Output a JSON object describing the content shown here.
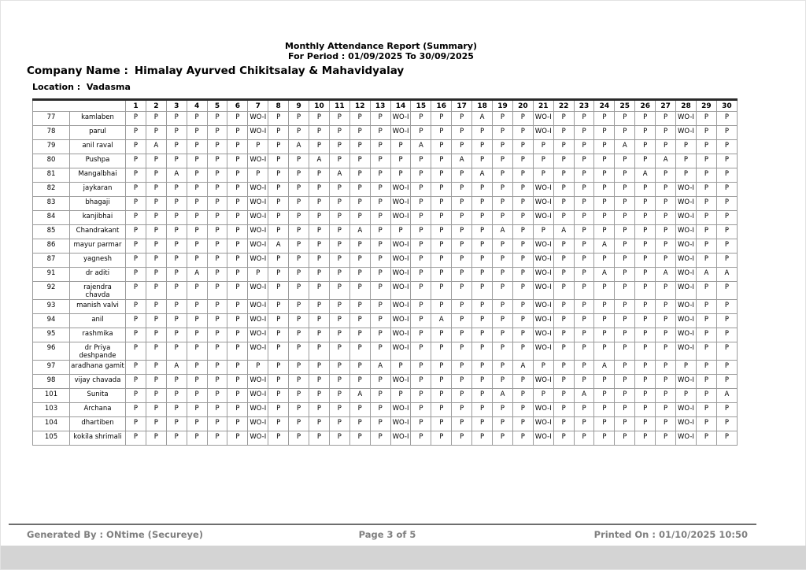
{
  "header": {
    "report_title": "Monthly Attendance Report (Summary)",
    "report_period": "For Period  : 01/09/2025 To 30/09/2025",
    "company_label": "Company Name :",
    "company_name": "Himalay Ayurved Chikitsalay & Mahavidyalay",
    "location_label": "Location  :",
    "location_name": "Vadasma"
  },
  "table": {
    "day_headers": [
      "1",
      "2",
      "3",
      "4",
      "5",
      "6",
      "7",
      "8",
      "9",
      "10",
      "11",
      "12",
      "13",
      "14",
      "15",
      "16",
      "17",
      "18",
      "19",
      "20",
      "21",
      "22",
      "23",
      "24",
      "25",
      "26",
      "27",
      "28",
      "29",
      "30"
    ],
    "rows": [
      {
        "id": "77",
        "name": "kamlaben",
        "days": [
          "P",
          "P",
          "P",
          "P",
          "P",
          "P",
          "WO-I",
          "P",
          "P",
          "P",
          "P",
          "P",
          "P",
          "WO-I",
          "P",
          "P",
          "P",
          "A",
          "P",
          "P",
          "WO-I",
          "P",
          "P",
          "P",
          "P",
          "P",
          "P",
          "WO-I",
          "P",
          "P"
        ]
      },
      {
        "id": "78",
        "name": "parul",
        "days": [
          "P",
          "P",
          "P",
          "P",
          "P",
          "P",
          "WO-I",
          "P",
          "P",
          "P",
          "P",
          "P",
          "P",
          "WO-I",
          "P",
          "P",
          "P",
          "P",
          "P",
          "P",
          "WO-I",
          "P",
          "P",
          "P",
          "P",
          "P",
          "P",
          "WO-I",
          "P",
          "P"
        ]
      },
      {
        "id": "79",
        "name": "anil raval",
        "days": [
          "P",
          "A",
          "P",
          "P",
          "P",
          "P",
          "P",
          "P",
          "A",
          "P",
          "P",
          "P",
          "P",
          "P",
          "A",
          "P",
          "P",
          "P",
          "P",
          "P",
          "P",
          "P",
          "P",
          "P",
          "A",
          "P",
          "P",
          "P",
          "P",
          "P"
        ]
      },
      {
        "id": "80",
        "name": "Pushpa",
        "days": [
          "P",
          "P",
          "P",
          "P",
          "P",
          "P",
          "WO-I",
          "P",
          "P",
          "A",
          "P",
          "P",
          "P",
          "P",
          "P",
          "P",
          "A",
          "P",
          "P",
          "P",
          "P",
          "P",
          "P",
          "P",
          "P",
          "P",
          "A",
          "P",
          "P",
          "P"
        ]
      },
      {
        "id": "81",
        "name": "Mangalbhai",
        "days": [
          "P",
          "P",
          "A",
          "P",
          "P",
          "P",
          "P",
          "P",
          "P",
          "P",
          "A",
          "P",
          "P",
          "P",
          "P",
          "P",
          "P",
          "A",
          "P",
          "P",
          "P",
          "P",
          "P",
          "P",
          "P",
          "A",
          "P",
          "P",
          "P",
          "P"
        ]
      },
      {
        "id": "82",
        "name": "jaykaran",
        "days": [
          "P",
          "P",
          "P",
          "P",
          "P",
          "P",
          "WO-I",
          "P",
          "P",
          "P",
          "P",
          "P",
          "P",
          "WO-I",
          "P",
          "P",
          "P",
          "P",
          "P",
          "P",
          "WO-I",
          "P",
          "P",
          "P",
          "P",
          "P",
          "P",
          "WO-I",
          "P",
          "P"
        ]
      },
      {
        "id": "83",
        "name": "bhagaji",
        "days": [
          "P",
          "P",
          "P",
          "P",
          "P",
          "P",
          "WO-I",
          "P",
          "P",
          "P",
          "P",
          "P",
          "P",
          "WO-I",
          "P",
          "P",
          "P",
          "P",
          "P",
          "P",
          "WO-I",
          "P",
          "P",
          "P",
          "P",
          "P",
          "P",
          "WO-I",
          "P",
          "P"
        ]
      },
      {
        "id": "84",
        "name": "kanjibhai",
        "days": [
          "P",
          "P",
          "P",
          "P",
          "P",
          "P",
          "WO-I",
          "P",
          "P",
          "P",
          "P",
          "P",
          "P",
          "WO-I",
          "P",
          "P",
          "P",
          "P",
          "P",
          "P",
          "WO-I",
          "P",
          "P",
          "P",
          "P",
          "P",
          "P",
          "WO-I",
          "P",
          "P"
        ]
      },
      {
        "id": "85",
        "name": "Chandrakant",
        "days": [
          "P",
          "P",
          "P",
          "P",
          "P",
          "P",
          "WO-I",
          "P",
          "P",
          "P",
          "P",
          "A",
          "P",
          "P",
          "P",
          "P",
          "P",
          "P",
          "A",
          "P",
          "P",
          "A",
          "P",
          "P",
          "P",
          "P",
          "P",
          "WO-I",
          "P",
          "P"
        ]
      },
      {
        "id": "86",
        "name": "mayur parmar",
        "days": [
          "P",
          "P",
          "P",
          "P",
          "P",
          "P",
          "WO-I",
          "A",
          "P",
          "P",
          "P",
          "P",
          "P",
          "WO-I",
          "P",
          "P",
          "P",
          "P",
          "P",
          "P",
          "WO-I",
          "P",
          "P",
          "A",
          "P",
          "P",
          "P",
          "WO-I",
          "P",
          "P"
        ]
      },
      {
        "id": "87",
        "name": "yagnesh",
        "days": [
          "P",
          "P",
          "P",
          "P",
          "P",
          "P",
          "WO-I",
          "P",
          "P",
          "P",
          "P",
          "P",
          "P",
          "WO-I",
          "P",
          "P",
          "P",
          "P",
          "P",
          "P",
          "WO-I",
          "P",
          "P",
          "P",
          "P",
          "P",
          "P",
          "WO-I",
          "P",
          "P"
        ]
      },
      {
        "id": "91",
        "name": "dr aditi",
        "days": [
          "P",
          "P",
          "P",
          "A",
          "P",
          "P",
          "P",
          "P",
          "P",
          "P",
          "P",
          "P",
          "P",
          "WO-I",
          "P",
          "P",
          "P",
          "P",
          "P",
          "P",
          "WO-I",
          "P",
          "P",
          "A",
          "P",
          "P",
          "A",
          "WO-I",
          "A",
          "A"
        ]
      },
      {
        "id": "92",
        "name": "rajendra chavda",
        "days": [
          "P",
          "P",
          "P",
          "P",
          "P",
          "P",
          "WO-I",
          "P",
          "P",
          "P",
          "P",
          "P",
          "P",
          "WO-I",
          "P",
          "P",
          "P",
          "P",
          "P",
          "P",
          "WO-I",
          "P",
          "P",
          "P",
          "P",
          "P",
          "P",
          "WO-I",
          "P",
          "P"
        ]
      },
      {
        "id": "93",
        "name": "manish valvi",
        "days": [
          "P",
          "P",
          "P",
          "P",
          "P",
          "P",
          "WO-I",
          "P",
          "P",
          "P",
          "P",
          "P",
          "P",
          "WO-I",
          "P",
          "P",
          "P",
          "P",
          "P",
          "P",
          "WO-I",
          "P",
          "P",
          "P",
          "P",
          "P",
          "P",
          "WO-I",
          "P",
          "P"
        ]
      },
      {
        "id": "94",
        "name": "anil",
        "days": [
          "P",
          "P",
          "P",
          "P",
          "P",
          "P",
          "WO-I",
          "P",
          "P",
          "P",
          "P",
          "P",
          "P",
          "WO-I",
          "P",
          "A",
          "P",
          "P",
          "P",
          "P",
          "WO-I",
          "P",
          "P",
          "P",
          "P",
          "P",
          "P",
          "WO-I",
          "P",
          "P"
        ]
      },
      {
        "id": "95",
        "name": "rashmika",
        "days": [
          "P",
          "P",
          "P",
          "P",
          "P",
          "P",
          "WO-I",
          "P",
          "P",
          "P",
          "P",
          "P",
          "P",
          "WO-I",
          "P",
          "P",
          "P",
          "P",
          "P",
          "P",
          "WO-I",
          "P",
          "P",
          "P",
          "P",
          "P",
          "P",
          "WO-I",
          "P",
          "P"
        ]
      },
      {
        "id": "96",
        "name": "dr Priya deshpande",
        "days": [
          "P",
          "P",
          "P",
          "P",
          "P",
          "P",
          "WO-I",
          "P",
          "P",
          "P",
          "P",
          "P",
          "P",
          "WO-I",
          "P",
          "P",
          "P",
          "P",
          "P",
          "P",
          "WO-I",
          "P",
          "P",
          "P",
          "P",
          "P",
          "P",
          "WO-I",
          "P",
          "P"
        ]
      },
      {
        "id": "97",
        "name": "aradhana gamit",
        "days": [
          "P",
          "P",
          "A",
          "P",
          "P",
          "P",
          "P",
          "P",
          "P",
          "P",
          "P",
          "P",
          "A",
          "P",
          "P",
          "P",
          "P",
          "P",
          "P",
          "A",
          "P",
          "P",
          "P",
          "A",
          "P",
          "P",
          "P",
          "P",
          "P",
          "P"
        ]
      },
      {
        "id": "98",
        "name": "vijay chavada",
        "days": [
          "P",
          "P",
          "P",
          "P",
          "P",
          "P",
          "WO-I",
          "P",
          "P",
          "P",
          "P",
          "P",
          "P",
          "WO-I",
          "P",
          "P",
          "P",
          "P",
          "P",
          "P",
          "WO-I",
          "P",
          "P",
          "P",
          "P",
          "P",
          "P",
          "WO-I",
          "P",
          "P"
        ]
      },
      {
        "id": "101",
        "name": "Sunita",
        "days": [
          "P",
          "P",
          "P",
          "P",
          "P",
          "P",
          "WO-I",
          "P",
          "P",
          "P",
          "P",
          "A",
          "P",
          "P",
          "P",
          "P",
          "P",
          "P",
          "A",
          "P",
          "P",
          "P",
          "A",
          "P",
          "P",
          "P",
          "P",
          "P",
          "P",
          "A"
        ]
      },
      {
        "id": "103",
        "name": "Archana",
        "days": [
          "P",
          "P",
          "P",
          "P",
          "P",
          "P",
          "WO-I",
          "P",
          "P",
          "P",
          "P",
          "P",
          "P",
          "WO-I",
          "P",
          "P",
          "P",
          "P",
          "P",
          "P",
          "WO-I",
          "P",
          "P",
          "P",
          "P",
          "P",
          "P",
          "WO-I",
          "P",
          "P"
        ]
      },
      {
        "id": "104",
        "name": "dhartiben",
        "days": [
          "P",
          "P",
          "P",
          "P",
          "P",
          "P",
          "WO-I",
          "P",
          "P",
          "P",
          "P",
          "P",
          "P",
          "WO-I",
          "P",
          "P",
          "P",
          "P",
          "P",
          "P",
          "WO-I",
          "P",
          "P",
          "P",
          "P",
          "P",
          "P",
          "WO-I",
          "P",
          "P"
        ]
      },
      {
        "id": "105",
        "name": "kokila shrimali",
        "days": [
          "P",
          "P",
          "P",
          "P",
          "P",
          "P",
          "WO-I",
          "P",
          "P",
          "P",
          "P",
          "P",
          "P",
          "WO-I",
          "P",
          "P",
          "P",
          "P",
          "P",
          "P",
          "WO-I",
          "P",
          "P",
          "P",
          "P",
          "P",
          "P",
          "WO-I",
          "P",
          "P"
        ]
      }
    ]
  },
  "footer": {
    "generated_by": "Generated By : ONtime (Secureye)",
    "page_info": "Page 3 of 5",
    "printed_on": "Printed On : 01/10/2025 10:50"
  }
}
